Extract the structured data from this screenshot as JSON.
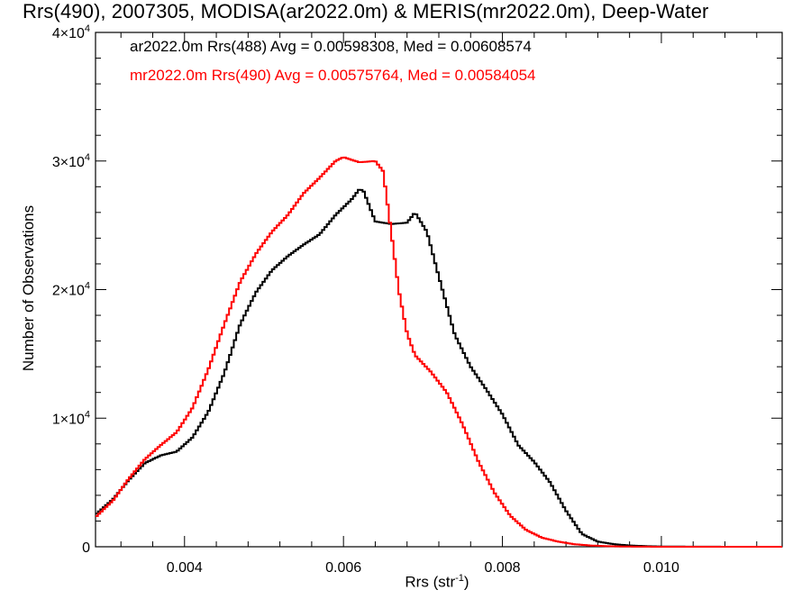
{
  "chart_data": {
    "type": "line",
    "title": "Rrs(490), 2007305, MODISA(ar2022.0m) & MERIS(mr2022.0m), Deep-Water",
    "xlabel": "Rrs (str",
    "xlabel_sup": "-1",
    "xlabel_close": ")",
    "ylabel": "Number of Observations",
    "xlim": [
      0.00288,
      0.01152
    ],
    "ylim": [
      0,
      40000
    ],
    "x_ticks": [
      {
        "value": 0.004,
        "label": "0.004"
      },
      {
        "value": 0.006,
        "label": "0.006"
      },
      {
        "value": 0.008,
        "label": "0.008"
      },
      {
        "value": 0.01,
        "label": "0.010"
      }
    ],
    "y_ticks": [
      {
        "value": 0,
        "base": "0",
        "exp": ""
      },
      {
        "value": 10000,
        "base": "1×10",
        "exp": "4"
      },
      {
        "value": 20000,
        "base": "2×10",
        "exp": "4"
      },
      {
        "value": 30000,
        "base": "3×10",
        "exp": "4"
      },
      {
        "value": 40000,
        "base": "4×10",
        "exp": "4"
      }
    ],
    "grid": false,
    "legend_placement": "top-left",
    "series": [
      {
        "name": "ar2022.0m Rrs(488) Avg = 0.00598308, Med = 0.00608574",
        "color": "#000000",
        "x": [
          0.00288,
          0.0031,
          0.0033,
          0.0035,
          0.0037,
          0.0039,
          0.0041,
          0.0043,
          0.0045,
          0.0047,
          0.0049,
          0.0051,
          0.0053,
          0.0055,
          0.0057,
          0.0059,
          0.0061,
          0.0062,
          0.00625,
          0.0064,
          0.0066,
          0.0068,
          0.0069,
          0.00705,
          0.0072,
          0.0074,
          0.0076,
          0.0078,
          0.008,
          0.0082,
          0.0084,
          0.0086,
          0.0088,
          0.009,
          0.0092,
          0.0094,
          0.0096,
          0.0098,
          0.01,
          0.0104,
          0.011,
          0.01152
        ],
        "values": [
          2500,
          3700,
          5200,
          6500,
          7100,
          7400,
          8500,
          10500,
          13500,
          17300,
          19800,
          21500,
          22600,
          23500,
          24300,
          25800,
          27000,
          27800,
          27700,
          25300,
          25100,
          25200,
          26000,
          24500,
          21000,
          16500,
          14000,
          12200,
          10300,
          7900,
          6600,
          5000,
          2800,
          1000,
          400,
          200,
          100,
          50,
          20,
          10,
          0,
          0
        ]
      },
      {
        "name": "mr2022.0m Rrs(490) Avg = 0.00575764, Med = 0.00584054",
        "color": "#ff0000",
        "x": [
          0.00288,
          0.0031,
          0.0033,
          0.0035,
          0.0037,
          0.0039,
          0.0041,
          0.0043,
          0.0045,
          0.0047,
          0.0049,
          0.0051,
          0.0053,
          0.0055,
          0.0057,
          0.0059,
          0.006,
          0.0062,
          0.0064,
          0.0065,
          0.0066,
          0.0067,
          0.0068,
          0.0069,
          0.0071,
          0.0073,
          0.0075,
          0.0077,
          0.0079,
          0.0081,
          0.0083,
          0.0085,
          0.0087,
          0.0089,
          0.0091,
          0.0093,
          0.0095,
          0.0097,
          0.01,
          0.0105,
          0.011,
          0.01152
        ],
        "values": [
          2300,
          3600,
          5300,
          6800,
          7900,
          8900,
          10800,
          13800,
          17300,
          20600,
          22800,
          24500,
          25800,
          27500,
          28700,
          30000,
          30300,
          29900,
          30000,
          29200,
          24500,
          19800,
          16600,
          14900,
          13600,
          12000,
          9500,
          6600,
          4200,
          2400,
          1300,
          700,
          400,
          200,
          100,
          50,
          20,
          10,
          0,
          0,
          0,
          0
        ]
      }
    ]
  }
}
